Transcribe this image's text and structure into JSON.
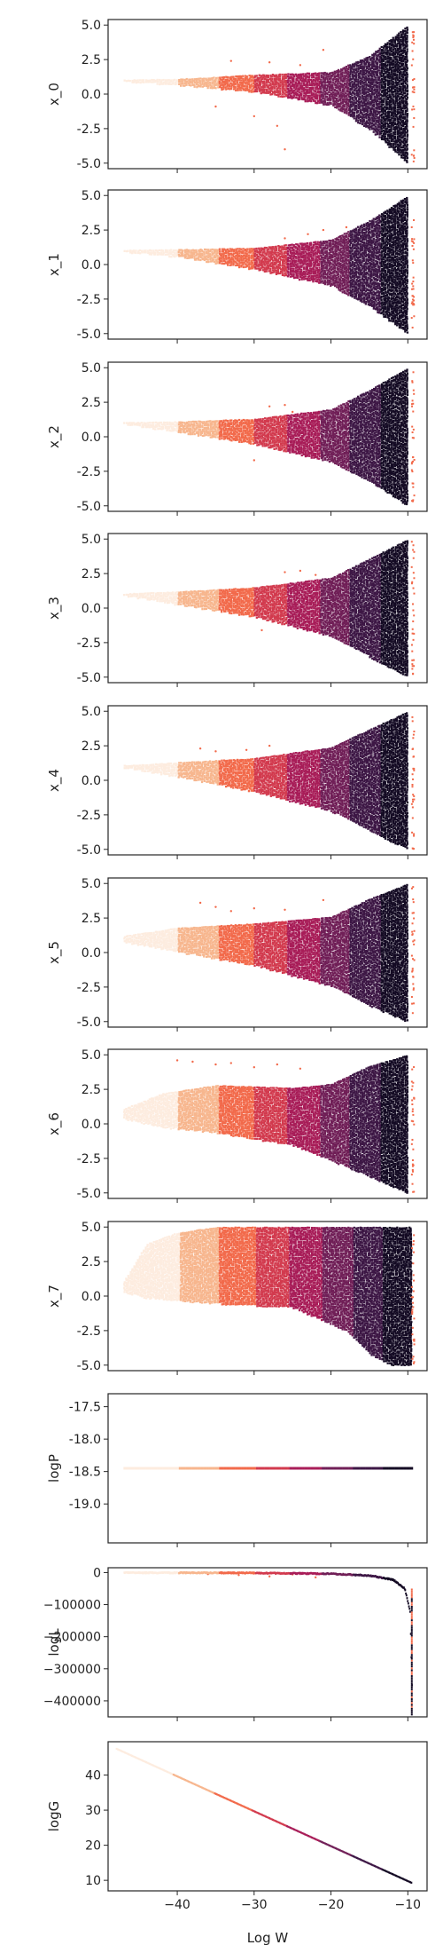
{
  "figure": {
    "xlabel": "Log W"
  },
  "colors": {
    "frame": "#262626",
    "cmap": [
      "#fdecdf",
      "#f7b68e",
      "#f26a4b",
      "#d23a4e",
      "#a81d58",
      "#701f57",
      "#3d1745",
      "#140b24"
    ]
  },
  "chart_data": [
    {
      "type": "scatter",
      "ylabel": "x_0",
      "xlim": [
        -49,
        -7.5
      ],
      "ylim": [
        -5.4,
        5.4
      ],
      "yticks": [
        5.0,
        2.5,
        0.0,
        -2.5,
        -5.0
      ],
      "ytick_labels": [
        "5.0",
        "2.5",
        "0.0",
        "-2.5",
        "-5.0"
      ],
      "xticks": [
        -40,
        -30,
        -20,
        -10
      ],
      "xtick_labels": [],
      "envelope": [
        [
          -47,
          0.95,
          1.05
        ],
        [
          -40,
          0.7,
          1.1
        ],
        [
          -30,
          0.2,
          1.4
        ],
        [
          -20,
          -0.8,
          1.6
        ],
        [
          -15,
          -2.5,
          2.8
        ],
        [
          -10,
          -5.0,
          5.0
        ]
      ],
      "outliers": [
        [
          -33,
          2.4
        ],
        [
          -28,
          2.3
        ],
        [
          -24,
          2.1
        ],
        [
          -35,
          -0.9
        ],
        [
          -30,
          -1.6
        ],
        [
          -27,
          -2.3
        ],
        [
          -26,
          -4.0
        ],
        [
          -21,
          3.2
        ]
      ]
    },
    {
      "type": "scatter",
      "ylabel": "x_1",
      "xlim": [
        -49,
        -7.5
      ],
      "ylim": [
        -5.4,
        5.4
      ],
      "yticks": [
        5.0,
        2.5,
        0.0,
        -2.5,
        -5.0
      ],
      "ytick_labels": [
        "5.0",
        "2.5",
        "0.0",
        "-2.5",
        "-5.0"
      ],
      "xticks": [
        -40,
        -30,
        -20,
        -10
      ],
      "xtick_labels": [],
      "envelope": [
        [
          -47,
          0.95,
          1.05
        ],
        [
          -40,
          0.6,
          1.1
        ],
        [
          -30,
          -0.3,
          1.2
        ],
        [
          -20,
          -1.5,
          1.8
        ],
        [
          -15,
          -3.0,
          3.2
        ],
        [
          -10,
          -5.0,
          5.0
        ]
      ],
      "outliers": [
        [
          -26,
          1.9
        ],
        [
          -23,
          2.2
        ],
        [
          -21,
          2.5
        ],
        [
          -18,
          2.7
        ]
      ]
    },
    {
      "type": "scatter",
      "ylabel": "x_2",
      "xlim": [
        -49,
        -7.5
      ],
      "ylim": [
        -5.4,
        5.4
      ],
      "yticks": [
        5.0,
        2.5,
        0.0,
        -2.5,
        -5.0
      ],
      "ytick_labels": [
        "5.0",
        "2.5",
        "0.0",
        "-2.5",
        "-5.0"
      ],
      "xticks": [
        -40,
        -30,
        -20,
        -10
      ],
      "xtick_labels": [],
      "envelope": [
        [
          -47,
          0.95,
          1.05
        ],
        [
          -40,
          0.4,
          1.1
        ],
        [
          -30,
          -0.5,
          1.3
        ],
        [
          -20,
          -1.8,
          2.0
        ],
        [
          -15,
          -3.2,
          3.4
        ],
        [
          -10,
          -5.0,
          5.0
        ]
      ],
      "outliers": [
        [
          -28,
          2.2
        ],
        [
          -26,
          2.3
        ],
        [
          -25,
          1.8
        ],
        [
          -30,
          -1.7
        ]
      ]
    },
    {
      "type": "scatter",
      "ylabel": "x_3",
      "xlim": [
        -49,
        -7.5
      ],
      "ylim": [
        -5.4,
        5.4
      ],
      "yticks": [
        5.0,
        2.5,
        0.0,
        -2.5,
        -5.0
      ],
      "ytick_labels": [
        "5.0",
        "2.5",
        "0.0",
        "-2.5",
        "-5.0"
      ],
      "xticks": [
        -40,
        -30,
        -20,
        -10
      ],
      "xtick_labels": [],
      "envelope": [
        [
          -47,
          0.95,
          1.05
        ],
        [
          -40,
          0.3,
          1.2
        ],
        [
          -30,
          -0.6,
          1.5
        ],
        [
          -20,
          -2.0,
          2.2
        ],
        [
          -15,
          -3.5,
          3.6
        ],
        [
          -10,
          -5.0,
          5.0
        ]
      ],
      "outliers": [
        [
          -26,
          2.6
        ],
        [
          -24,
          2.7
        ],
        [
          -22,
          2.4
        ],
        [
          -29,
          -1.6
        ]
      ]
    },
    {
      "type": "scatter",
      "ylabel": "x_4",
      "xlim": [
        -49,
        -7.5
      ],
      "ylim": [
        -5.4,
        5.4
      ],
      "yticks": [
        5.0,
        2.5,
        0.0,
        -2.5,
        -5.0
      ],
      "ytick_labels": [
        "5.0",
        "2.5",
        "0.0",
        "-2.5",
        "-5.0"
      ],
      "xticks": [
        -40,
        -30,
        -20,
        -10
      ],
      "xtick_labels": [],
      "envelope": [
        [
          -47,
          0.95,
          1.1
        ],
        [
          -40,
          0.3,
          1.3
        ],
        [
          -30,
          -0.8,
          1.6
        ],
        [
          -20,
          -2.2,
          2.4
        ],
        [
          -15,
          -3.6,
          3.7
        ],
        [
          -10,
          -5.0,
          5.0
        ]
      ],
      "outliers": [
        [
          -37,
          2.3
        ],
        [
          -35,
          2.1
        ],
        [
          -31,
          2.2
        ],
        [
          -28,
          2.5
        ],
        [
          -33,
          -0.5
        ]
      ]
    },
    {
      "type": "scatter",
      "ylabel": "x_5",
      "xlim": [
        -49,
        -7.5
      ],
      "ylim": [
        -5.4,
        5.4
      ],
      "yticks": [
        5.0,
        2.5,
        0.0,
        -2.5,
        -5.0
      ],
      "ytick_labels": [
        "5.0",
        "2.5",
        "0.0",
        "-2.5",
        "-5.0"
      ],
      "xticks": [
        -40,
        -30,
        -20,
        -10
      ],
      "xtick_labels": [],
      "envelope": [
        [
          -47,
          0.8,
          1.2
        ],
        [
          -40,
          0.1,
          1.8
        ],
        [
          -30,
          -0.9,
          2.1
        ],
        [
          -20,
          -2.4,
          2.6
        ],
        [
          -15,
          -3.8,
          3.9
        ],
        [
          -10,
          -5.0,
          5.0
        ]
      ],
      "outliers": [
        [
          -37,
          3.6
        ],
        [
          -35,
          3.3
        ],
        [
          -33,
          3.0
        ],
        [
          -30,
          3.2
        ],
        [
          -26,
          3.1
        ],
        [
          -21,
          3.8
        ]
      ]
    },
    {
      "type": "scatter",
      "ylabel": "x_6",
      "xlim": [
        -49,
        -7.5
      ],
      "ylim": [
        -5.4,
        5.4
      ],
      "yticks": [
        5.0,
        2.5,
        0.0,
        -2.5,
        -5.0
      ],
      "ytick_labels": [
        "5.0",
        "2.5",
        "0.0",
        "-2.5",
        "-5.0"
      ],
      "xticks": [
        -40,
        -30,
        -20,
        -10
      ],
      "xtick_labels": [],
      "envelope": [
        [
          -47,
          0.4,
          1.1
        ],
        [
          -42,
          -0.2,
          2.2
        ],
        [
          -35,
          -0.6,
          2.8
        ],
        [
          -25,
          -1.5,
          2.6
        ],
        [
          -20,
          -2.6,
          2.9
        ],
        [
          -15,
          -3.8,
          4.2
        ],
        [
          -10,
          -5.0,
          5.0
        ]
      ],
      "outliers": [
        [
          -40,
          4.6
        ],
        [
          -38,
          4.5
        ],
        [
          -35,
          4.3
        ],
        [
          -33,
          4.4
        ],
        [
          -30,
          4.1
        ],
        [
          -27,
          4.3
        ],
        [
          -24,
          4.0
        ]
      ]
    },
    {
      "type": "scatter",
      "ylabel": "x_7",
      "xlim": [
        -49,
        -7.5
      ],
      "ylim": [
        -5.4,
        5.4
      ],
      "yticks": [
        5.0,
        2.5,
        0.0,
        -2.5,
        -5.0
      ],
      "ytick_labels": [
        "5.0",
        "2.5",
        "0.0",
        "-2.5",
        "-5.0"
      ],
      "xticks": [
        -40,
        -30,
        -20,
        -10
      ],
      "xtick_labels": [],
      "envelope": [
        [
          -47,
          0.3,
          1.1
        ],
        [
          -44,
          -0.1,
          3.8
        ],
        [
          -40,
          -0.3,
          4.6
        ],
        [
          -35,
          -0.5,
          5.0
        ],
        [
          -25,
          -0.8,
          5.0
        ],
        [
          -18,
          -2.5,
          5.0
        ],
        [
          -15,
          -4.2,
          5.0
        ],
        [
          -12,
          -5.0,
          5.0
        ],
        [
          -9.5,
          -5.0,
          5.0
        ]
      ],
      "outliers": []
    },
    {
      "type": "scatter",
      "ylabel": "logP",
      "xlim": [
        -49,
        -7.5
      ],
      "ylim": [
        -19.6,
        -17.3
      ],
      "yticks": [
        -17.5,
        -18.0,
        -18.5,
        -19.0
      ],
      "ytick_labels": [
        "-17.5",
        "-18.0",
        "-18.5",
        "-19.0"
      ],
      "xticks": [
        -40,
        -30,
        -20,
        -10
      ],
      "xtick_labels": [],
      "constant": -18.45,
      "xrange": [
        -47,
        -9.5
      ]
    },
    {
      "type": "scatter",
      "ylabel": "logL",
      "xlim": [
        -49,
        -7.5
      ],
      "ylim": [
        -450000,
        15000
      ],
      "yticks": [
        0,
        -100000,
        -200000,
        -300000,
        -400000
      ],
      "ytick_labels": [
        "0",
        "−100000",
        "−200000",
        "−300000",
        "−400000"
      ],
      "xticks": [
        -40,
        -30,
        -20,
        -10
      ],
      "xtick_labels": [],
      "curve": [
        [
          -47,
          0
        ],
        [
          -30,
          -800
        ],
        [
          -20,
          -3500
        ],
        [
          -15,
          -9000
        ],
        [
          -12,
          -22000
        ],
        [
          -10.5,
          -50000
        ],
        [
          -9.8,
          -120000
        ],
        [
          -9.6,
          -300000
        ],
        [
          -9.5,
          -430000
        ]
      ],
      "outliers": [
        [
          -36,
          -5000
        ],
        [
          -32,
          -8000
        ],
        [
          -28,
          -12000
        ],
        [
          -25,
          -6000
        ],
        [
          -22,
          -15000
        ]
      ]
    },
    {
      "type": "scatter",
      "ylabel": "logG",
      "xlim": [
        -49,
        -7.5
      ],
      "ylim": [
        7,
        49.5
      ],
      "yticks": [
        40,
        30,
        20,
        10
      ],
      "ytick_labels": [
        "40",
        "30",
        "20",
        "10"
      ],
      "xticks": [
        -40,
        -30,
        -20,
        -10
      ],
      "xtick_labels": [
        "−40",
        "−30",
        "−20",
        "−10"
      ],
      "line": [
        [
          -48,
          47.5
        ],
        [
          -9.5,
          9.2
        ]
      ]
    }
  ]
}
